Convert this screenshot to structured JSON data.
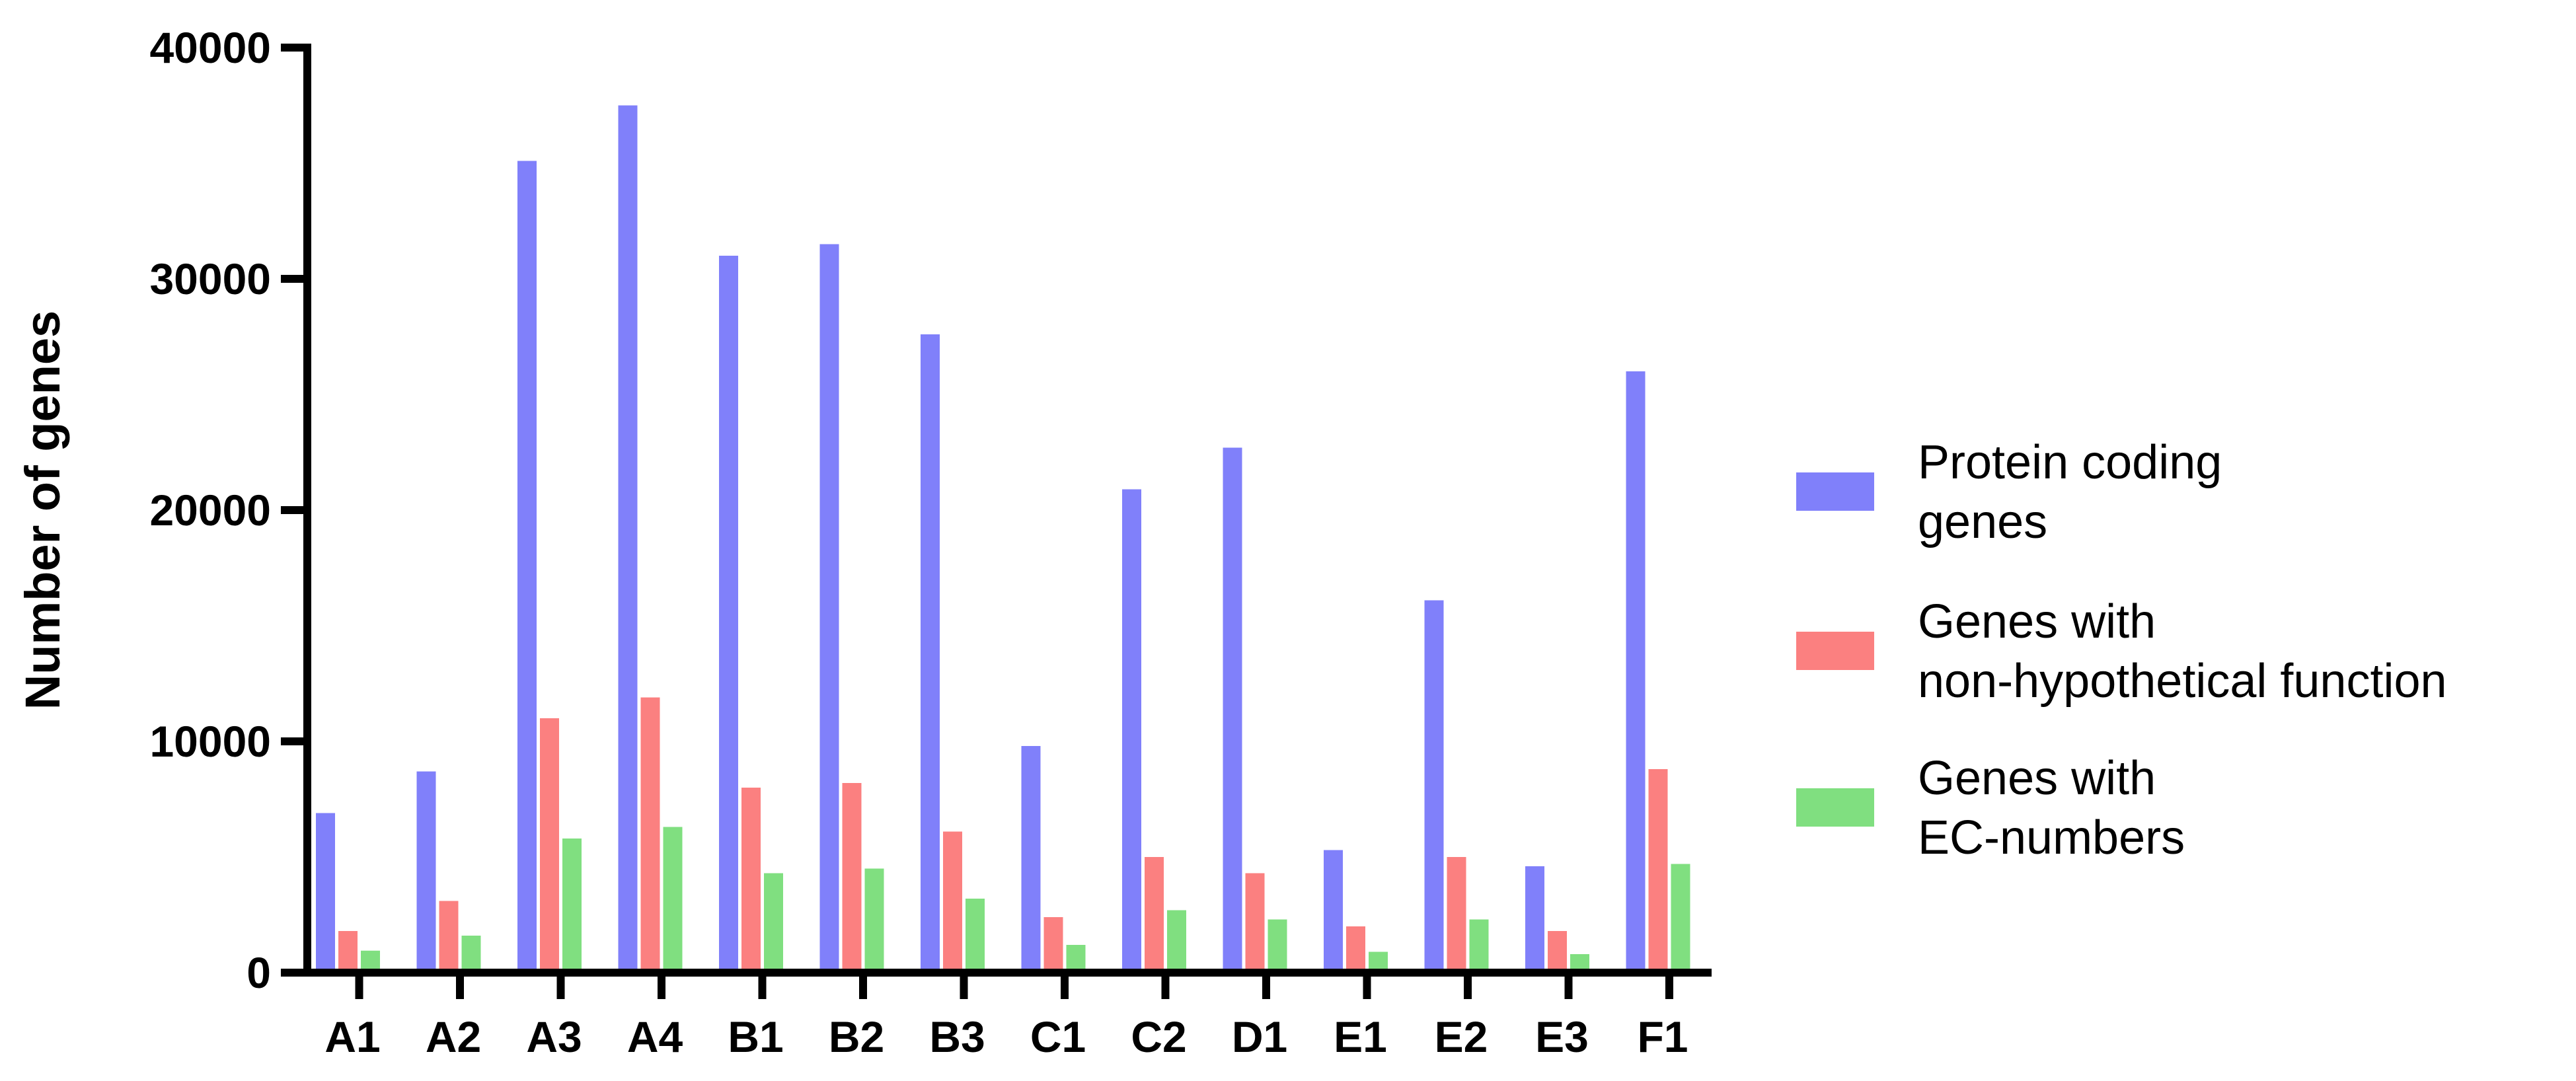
{
  "chart_data": {
    "type": "bar",
    "categories": [
      "A1",
      "A2",
      "A3",
      "A4",
      "B1",
      "B2",
      "B3",
      "C1",
      "C2",
      "D1",
      "E1",
      "E2",
      "E3",
      "F1"
    ],
    "series": [
      {
        "name": "Protein coding genes",
        "label_lines": [
          "Protein coding",
          "genes"
        ],
        "color": "#8080fa",
        "values": [
          6900,
          8700,
          35100,
          37500,
          31000,
          31500,
          27600,
          9800,
          20900,
          22700,
          5300,
          16100,
          4600,
          26000
        ]
      },
      {
        "name": "Genes with non-hypothetical function",
        "label_lines": [
          "Genes with",
          "non-hypothetical function"
        ],
        "color": "#fb8080",
        "values": [
          1800,
          3100,
          11000,
          11900,
          8000,
          8200,
          6100,
          2400,
          5000,
          4300,
          2000,
          5000,
          1800,
          8800
        ]
      },
      {
        "name": "Genes with EC-numbers",
        "label_lines": [
          "Genes with",
          "EC-numbers"
        ],
        "color": "#80df80",
        "values": [
          950,
          1600,
          5800,
          6300,
          4300,
          4500,
          3200,
          1200,
          2700,
          2300,
          900,
          2300,
          800,
          4700
        ]
      }
    ],
    "ylabel": "Number of genes",
    "xlabel": "",
    "ylim": [
      0,
      40000
    ],
    "yticks": [
      0,
      10000,
      20000,
      30000,
      40000
    ],
    "ytick_labels": [
      "0",
      "10000",
      "20000",
      "30000",
      "40000"
    ],
    "grid": false,
    "legend_position": "right"
  }
}
